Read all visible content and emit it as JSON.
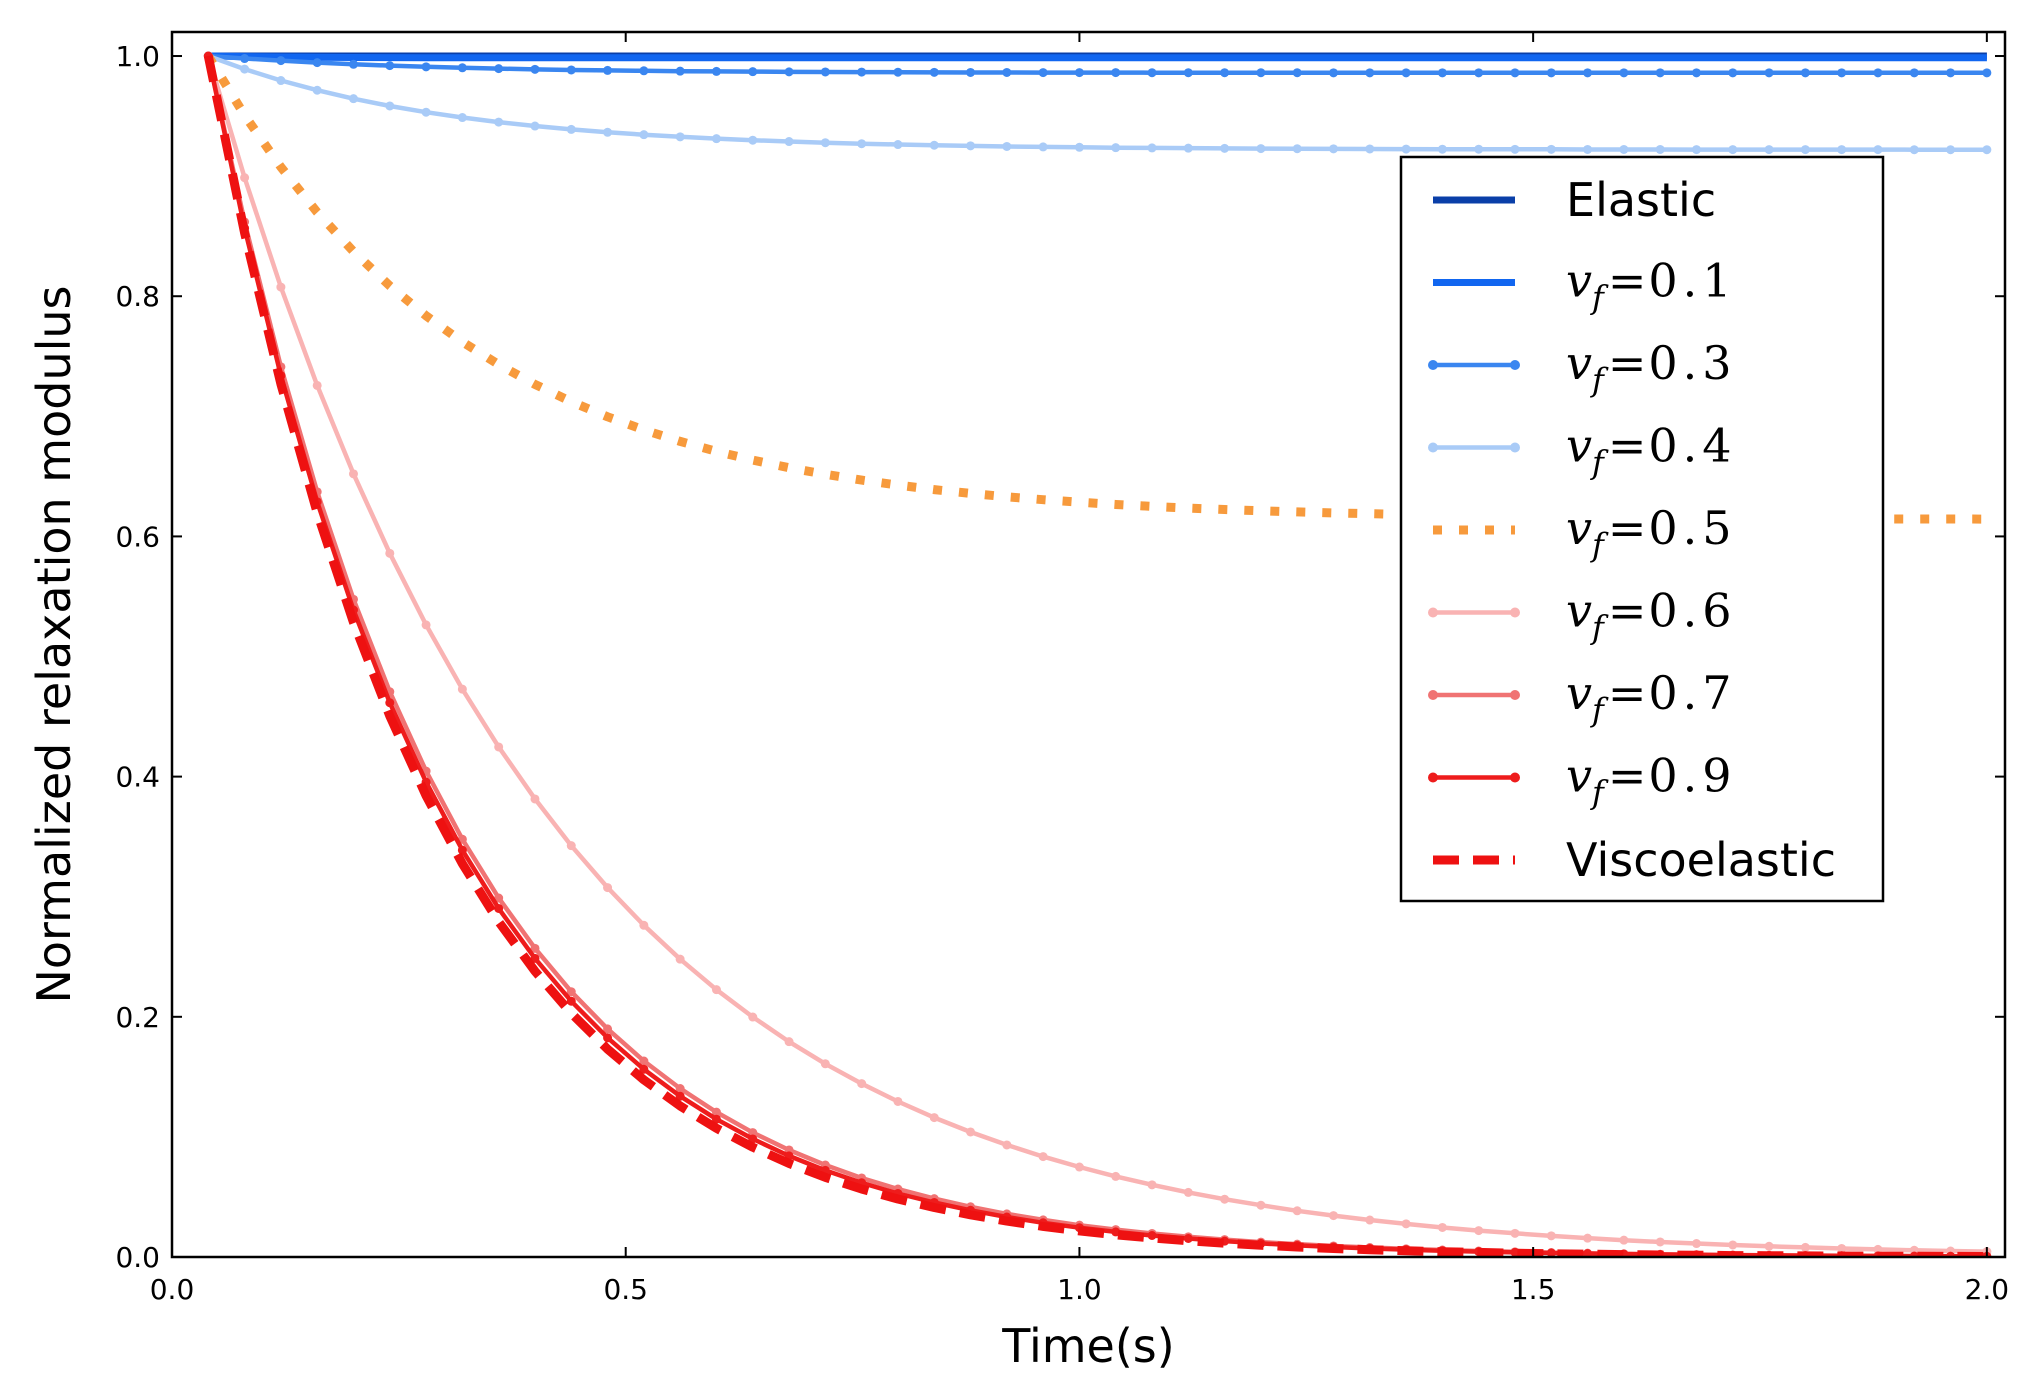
{
  "chart_data": {
    "type": "line",
    "title": "",
    "xlabel": "Time(s)",
    "ylabel": "Normalized relaxation modulus",
    "xlim": [
      0.0,
      2.02
    ],
    "ylim": [
      0.0,
      1.02
    ],
    "xticks": [
      0.0,
      0.5,
      1.0,
      1.5,
      2.0
    ],
    "xtick_labels": [
      "0.0",
      "0.5",
      "1.0",
      "1.5",
      "2.0"
    ],
    "yticks": [
      0.0,
      0.2,
      0.4,
      0.6,
      0.8,
      1.0
    ],
    "ytick_labels": [
      "0.0",
      "0.2",
      "0.4",
      "0.6",
      "0.8",
      "1.0"
    ],
    "grid": false,
    "legend_position": "right",
    "x": [
      0.04,
      0.08,
      0.12,
      0.16,
      0.2,
      0.24,
      0.28,
      0.32,
      0.36,
      0.4,
      0.44,
      0.48,
      0.52,
      0.56,
      0.6,
      0.64,
      0.68,
      0.72,
      0.76,
      0.8,
      0.84,
      0.88,
      0.92,
      0.96,
      1.0,
      1.04,
      1.08,
      1.12,
      1.16,
      1.2,
      1.24,
      1.28,
      1.32,
      1.36,
      1.4,
      1.44,
      1.48,
      1.52,
      1.56,
      1.6,
      1.64,
      1.68,
      1.72,
      1.76,
      1.8,
      1.84,
      1.88,
      1.92,
      1.96,
      2.0
    ],
    "series": [
      {
        "name": "Elastic",
        "label_var": "",
        "label_eq": "",
        "label_val": "",
        "color": "#0a3fa8",
        "style": "solid",
        "markers": false,
        "values": [
          1.0,
          1.0,
          1.0,
          1.0,
          1.0,
          1.0,
          1.0,
          1.0,
          1.0,
          1.0,
          1.0,
          1.0,
          1.0,
          1.0,
          1.0,
          1.0,
          1.0,
          1.0,
          1.0,
          1.0,
          1.0,
          1.0,
          1.0,
          1.0,
          1.0,
          1.0,
          1.0,
          1.0,
          1.0,
          1.0,
          1.0,
          1.0,
          1.0,
          1.0,
          1.0,
          1.0,
          1.0,
          1.0,
          1.0,
          1.0,
          1.0,
          1.0,
          1.0,
          1.0,
          1.0,
          1.0,
          1.0,
          1.0,
          1.0,
          1.0
        ]
      },
      {
        "name": "",
        "label_var": "v",
        "label_sub": "f",
        "label_eq": "=",
        "label_val": "0.1",
        "color": "#1166f0",
        "style": "solid",
        "markers": false,
        "values": [
          1.0,
          0.9995,
          0.9992,
          0.999,
          0.9988,
          0.9987,
          0.9986,
          0.9986,
          0.9985,
          0.9985,
          0.9985,
          0.9985,
          0.9985,
          0.9985,
          0.9985,
          0.9985,
          0.9985,
          0.9985,
          0.9985,
          0.9985,
          0.9985,
          0.9985,
          0.9985,
          0.9985,
          0.9985,
          0.9985,
          0.9985,
          0.9985,
          0.9985,
          0.9985,
          0.9985,
          0.9985,
          0.9985,
          0.9985,
          0.9985,
          0.9985,
          0.9985,
          0.9985,
          0.9985,
          0.9985,
          0.9985,
          0.9985,
          0.9985,
          0.9985,
          0.9985,
          0.9985,
          0.9985,
          0.9985,
          0.9985,
          0.9985
        ]
      },
      {
        "name": "",
        "label_var": "v",
        "label_sub": "f",
        "label_eq": "=",
        "label_val": "0.3",
        "color": "#3a86f0",
        "style": "solid",
        "markers": true,
        "values": [
          1.0,
          0.9979,
          0.9962,
          0.9945,
          0.9931,
          0.992,
          0.991,
          0.9902,
          0.9895,
          0.9889,
          0.9884,
          0.988,
          0.9877,
          0.9874,
          0.9872,
          0.987,
          0.9868,
          0.9867,
          0.9866,
          0.9865,
          0.9864,
          0.9863,
          0.9863,
          0.9862,
          0.9862,
          0.9862,
          0.9861,
          0.9861,
          0.9861,
          0.9861,
          0.9861,
          0.986,
          0.986,
          0.986,
          0.986,
          0.986,
          0.986,
          0.986,
          0.986,
          0.986,
          0.986,
          0.986,
          0.986,
          0.986,
          0.986,
          0.986,
          0.986,
          0.986,
          0.986,
          0.986
        ]
      },
      {
        "name": "",
        "label_var": "v",
        "label_sub": "f",
        "label_eq": "=",
        "label_val": "0.4",
        "color": "#a9cbf7",
        "style": "solid",
        "markers": true,
        "values": [
          1.0,
          0.9891,
          0.9796,
          0.9715,
          0.9645,
          0.9584,
          0.9532,
          0.9488,
          0.945,
          0.9417,
          0.9389,
          0.9365,
          0.9345,
          0.9327,
          0.9312,
          0.9299,
          0.9288,
          0.9278,
          0.927,
          0.9263,
          0.9257,
          0.9252,
          0.9247,
          0.9243,
          0.924,
          0.9237,
          0.9235,
          0.9233,
          0.9231,
          0.9229,
          0.9228,
          0.9227,
          0.9226,
          0.9225,
          0.9224,
          0.9224,
          0.9223,
          0.9223,
          0.9222,
          0.9222,
          0.9222,
          0.9221,
          0.9221,
          0.9221,
          0.9221,
          0.9221,
          0.9221,
          0.922,
          0.922,
          0.922
        ]
      },
      {
        "name": "",
        "label_var": "v",
        "label_sub": "f",
        "label_eq": "=",
        "label_val": "0.5",
        "color": "#f79a3c",
        "style": "dotted",
        "markers": false,
        "values": [
          1.0,
          0.9506,
          0.9075,
          0.8699,
          0.8372,
          0.8086,
          0.7837,
          0.762,
          0.7431,
          0.7266,
          0.7122,
          0.6996,
          0.6887,
          0.6791,
          0.6708,
          0.6635,
          0.6572,
          0.6517,
          0.6469,
          0.6427,
          0.639,
          0.6358,
          0.633,
          0.6306,
          0.6285,
          0.6266,
          0.625,
          0.6236,
          0.6224,
          0.6213,
          0.6204,
          0.6196,
          0.6189,
          0.6182,
          0.6177,
          0.6172,
          0.6168,
          0.6164,
          0.6161,
          0.6158,
          0.6156,
          0.6154,
          0.6152,
          0.615,
          0.6149,
          0.6148,
          0.6146,
          0.6145,
          0.6145,
          0.6144
        ]
      },
      {
        "name": "",
        "label_var": "v",
        "label_sub": "f",
        "label_eq": "=",
        "label_val": "0.6",
        "color": "#f9b3b3",
        "style": "solid",
        "markers": true,
        "values": [
          1.0,
          0.8987,
          0.8076,
          0.7257,
          0.6521,
          0.5859,
          0.5263,
          0.4728,
          0.4247,
          0.3814,
          0.3425,
          0.3076,
          0.2762,
          0.248,
          0.2226,
          0.1998,
          0.1793,
          0.1609,
          0.1444,
          0.1295,
          0.1161,
          0.1041,
          0.0933,
          0.0836,
          0.0749,
          0.0671,
          0.0601,
          0.0538,
          0.0481,
          0.0431,
          0.0385,
          0.0345,
          0.0308,
          0.0276,
          0.0246,
          0.022,
          0.0197,
          0.0176,
          0.0157,
          0.014,
          0.0125,
          0.0112,
          0.01,
          0.0089,
          0.008,
          0.0071,
          0.0063,
          0.0056,
          0.005,
          0.0045
        ]
      },
      {
        "name": "",
        "label_var": "v",
        "label_sub": "f",
        "label_eq": "=",
        "label_val": "0.7",
        "color": "#f07373",
        "style": "solid",
        "markers": true,
        "values": [
          1.0,
          0.8619,
          0.7412,
          0.6371,
          0.5476,
          0.4707,
          0.4046,
          0.3478,
          0.2989,
          0.257,
          0.2209,
          0.1899,
          0.1632,
          0.1403,
          0.1206,
          0.1036,
          0.0891,
          0.0766,
          0.0658,
          0.0566,
          0.0486,
          0.0418,
          0.0359,
          0.0309,
          0.0265,
          0.0228,
          0.0196,
          0.0168,
          0.0145,
          0.0124,
          0.0107,
          0.0092,
          0.0079,
          0.0068,
          0.0058,
          0.005,
          0.0043,
          0.0037,
          0.0032,
          0.0027,
          0.0023,
          0.002,
          0.0017,
          0.0015,
          0.0013,
          0.0011,
          0.0009,
          0.0008,
          0.0007,
          0.0006
        ]
      },
      {
        "name": "",
        "label_var": "v",
        "label_sub": "f",
        "label_eq": "=",
        "label_val": "0.9",
        "color": "#ee1c1c",
        "style": "solid",
        "markers": true,
        "values": [
          1.0,
          0.8567,
          0.7339,
          0.6288,
          0.5387,
          0.4615,
          0.3954,
          0.3387,
          0.2902,
          0.2486,
          0.213,
          0.1825,
          0.1563,
          0.1339,
          0.1147,
          0.0983,
          0.0842,
          0.0721,
          0.0618,
          0.0529,
          0.0454,
          0.0389,
          0.0333,
          0.0285,
          0.0244,
          0.0209,
          0.0179,
          0.0154,
          0.0132,
          0.0113,
          0.0097,
          0.0083,
          0.0071,
          0.0061,
          0.0052,
          0.0045,
          0.0038,
          0.0033,
          0.0028,
          0.0024,
          0.0021,
          0.0018,
          0.0015,
          0.0013,
          0.0011,
          0.001,
          0.0008,
          0.0007,
          0.0006,
          0.0005
        ]
      },
      {
        "name": "Viscoelastic",
        "label_var": "",
        "label_eq": "",
        "label_val": "",
        "color": "#ee1111",
        "style": "dashed",
        "markers": false,
        "values": [
          1.0,
          0.8526,
          0.7269,
          0.6197,
          0.5284,
          0.4505,
          0.3841,
          0.3274,
          0.2791,
          0.238,
          0.2029,
          0.173,
          0.1475,
          0.1257,
          0.1072,
          0.0914,
          0.0779,
          0.0664,
          0.0566,
          0.0483,
          0.0412,
          0.0351,
          0.0299,
          0.0255,
          0.0217,
          0.0185,
          0.0158,
          0.0135,
          0.0115,
          0.0098,
          0.0083,
          0.0071,
          0.0061,
          0.0052,
          0.0044,
          0.0038,
          0.0032,
          0.0027,
          0.0023,
          0.002,
          0.0017,
          0.0015,
          0.0012,
          0.0011,
          0.0009,
          0.0008,
          0.0007,
          0.0006,
          0.0005,
          0.0004
        ]
      }
    ]
  }
}
